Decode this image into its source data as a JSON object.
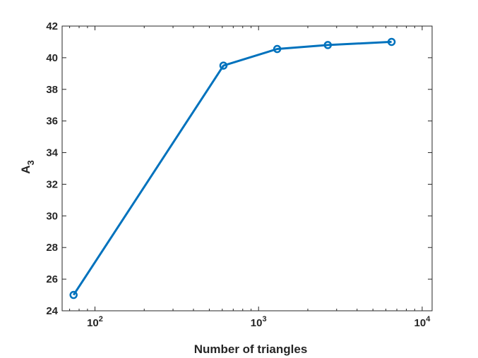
{
  "chart_data": {
    "type": "line",
    "title": "",
    "xlabel": "Number of triangles",
    "ylabel": {
      "base": "A",
      "subscript": "3"
    },
    "xscale": "log",
    "xlim": [
      63,
      11500
    ],
    "ylim": [
      24,
      42
    ],
    "xticks": [
      {
        "value": 100,
        "base": "10",
        "exp": "2"
      },
      {
        "value": 1000,
        "base": "10",
        "exp": "3"
      },
      {
        "value": 10000,
        "base": "10",
        "exp": "4"
      }
    ],
    "yticks": [
      "24",
      "26",
      "28",
      "30",
      "32",
      "34",
      "36",
      "38",
      "40",
      "42"
    ],
    "grid": false,
    "legend": "none",
    "series": [
      {
        "x": [
          74,
          610,
          1300,
          2650,
          6500
        ],
        "y": [
          25.0,
          39.5,
          40.55,
          40.8,
          41.0
        ],
        "color": "#0072BD",
        "marker": "circle"
      }
    ]
  }
}
